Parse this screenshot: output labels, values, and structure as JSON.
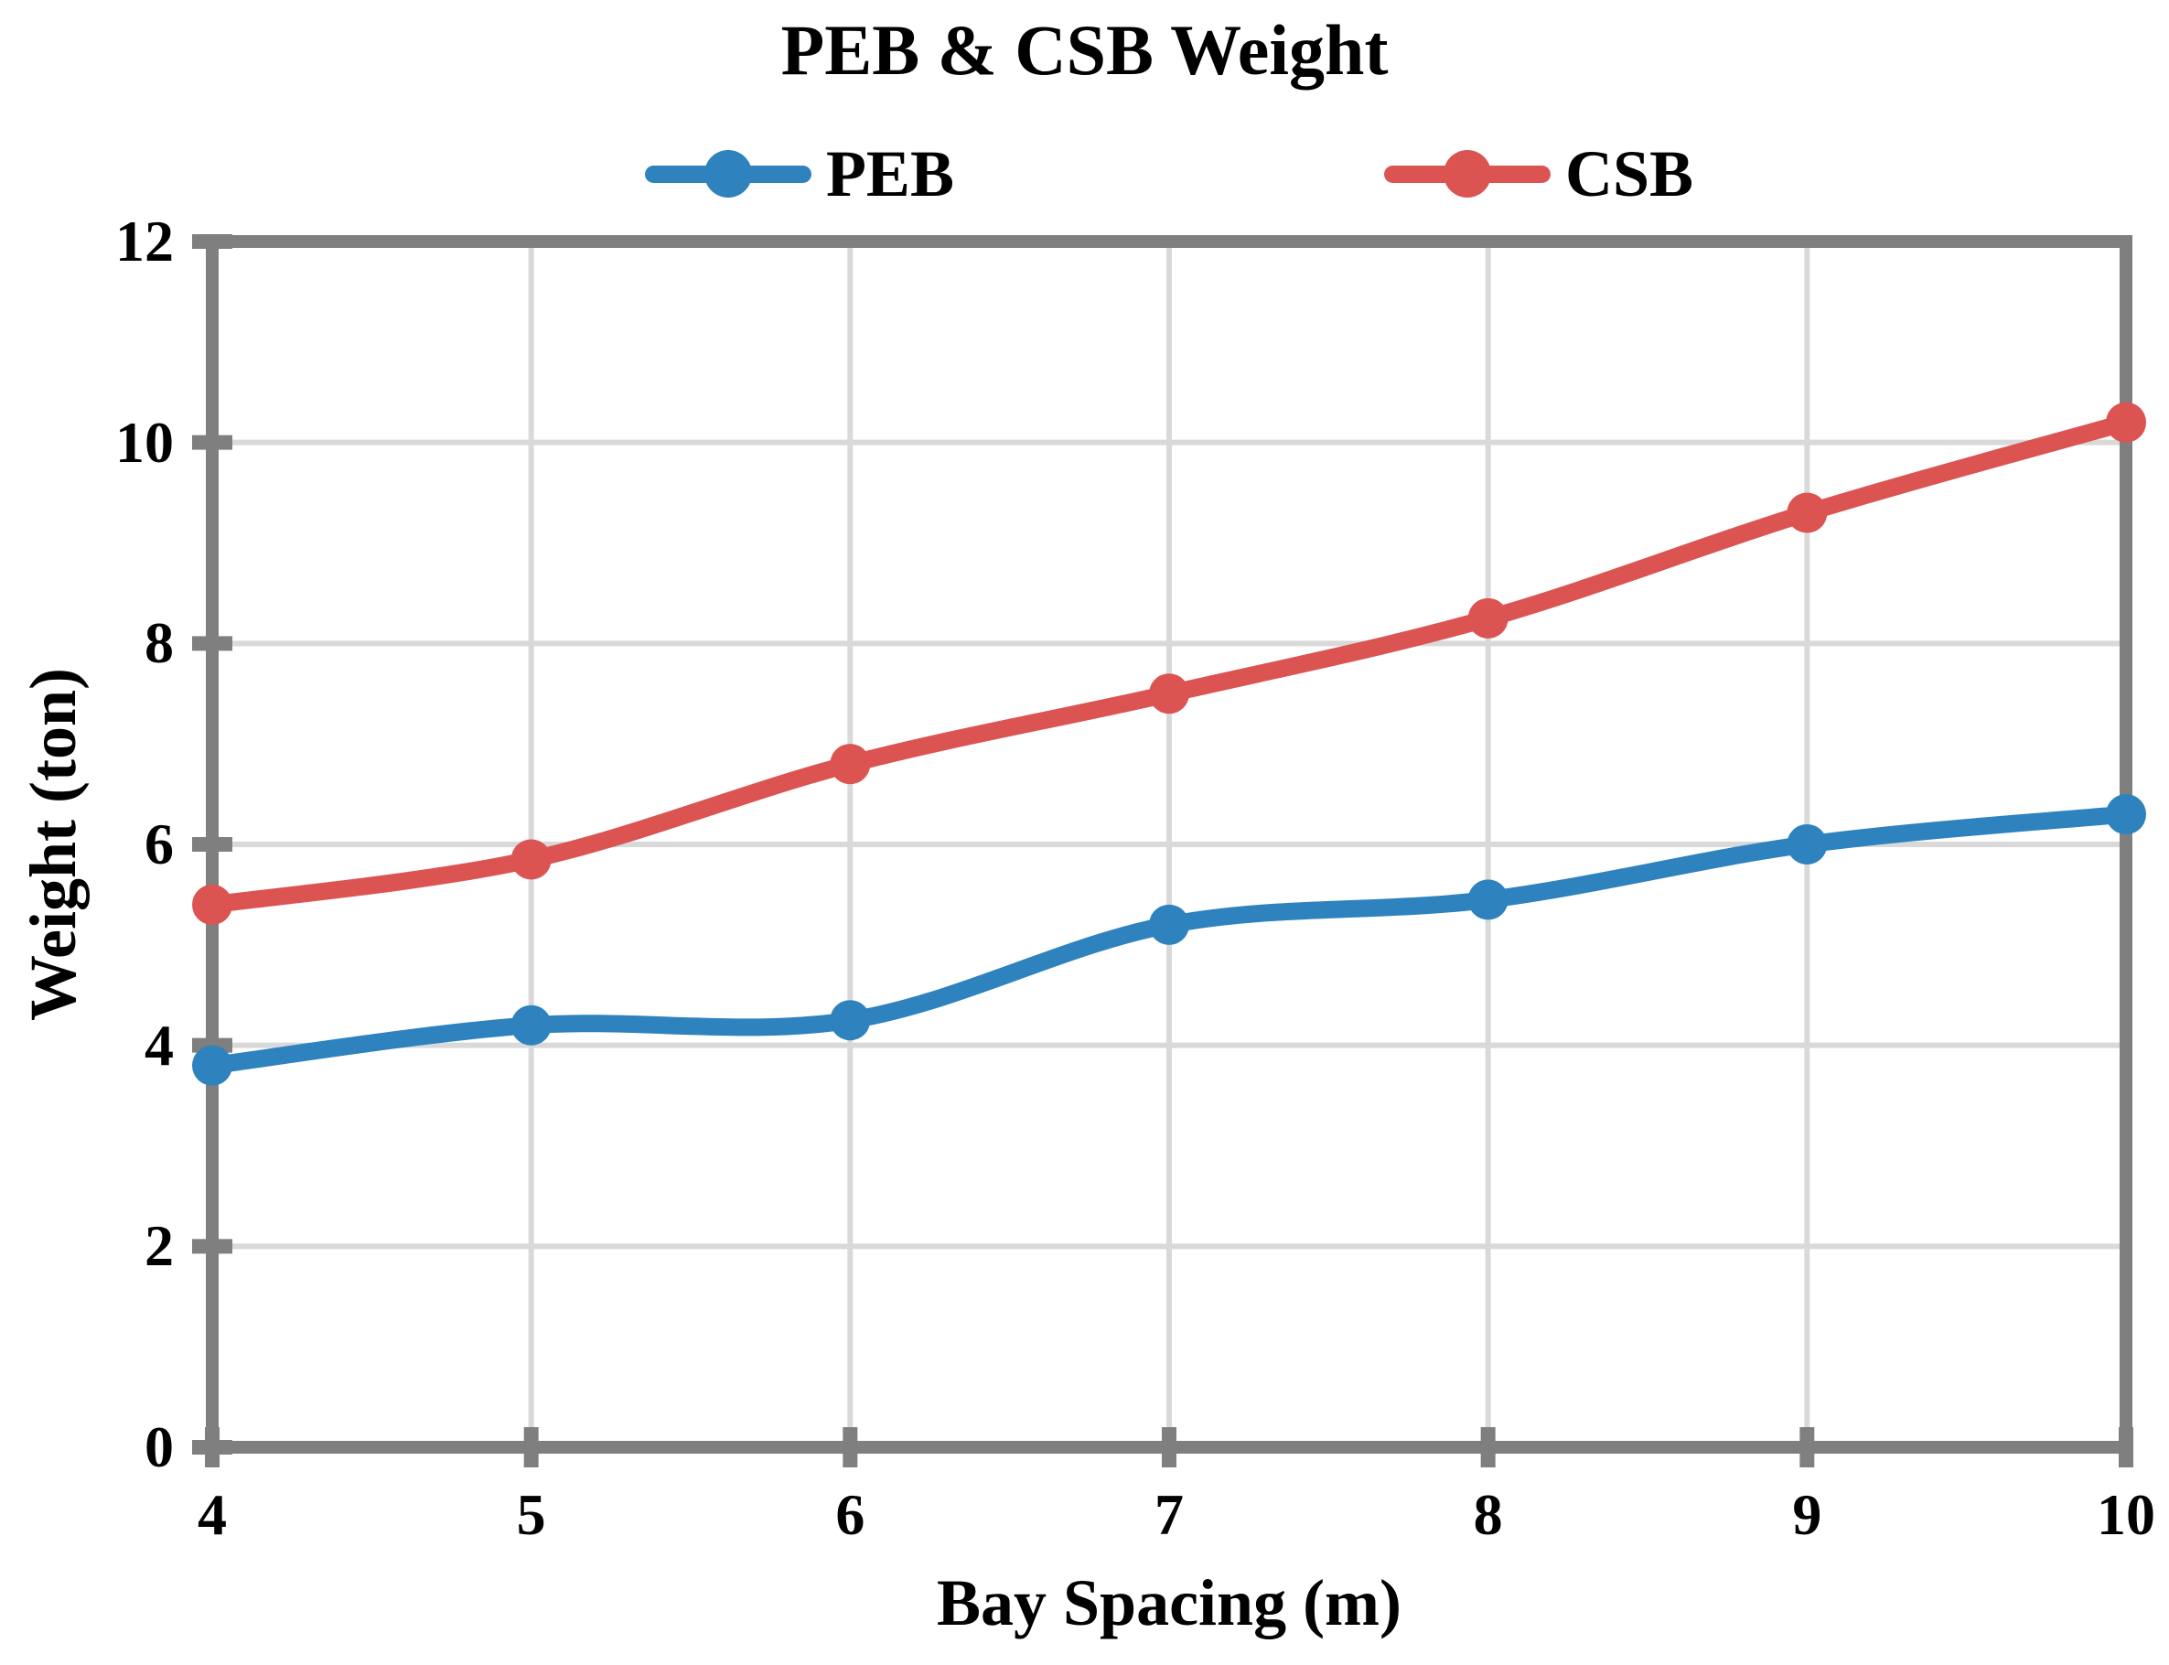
{
  "chart_data": {
    "type": "line",
    "title": "PEB & CSB Weight",
    "xlabel": "Bay Spacing (m)",
    "ylabel": "Weight (ton)",
    "x": [
      4,
      5,
      6,
      7,
      8,
      9,
      10
    ],
    "series": [
      {
        "name": "PEB",
        "color": "#2E82BE",
        "values": [
          3.8,
          4.2,
          4.25,
          5.2,
          5.45,
          6.0,
          6.3
        ]
      },
      {
        "name": "CSB",
        "color": "#DB5452",
        "values": [
          5.4,
          5.85,
          6.8,
          7.5,
          8.25,
          9.3,
          10.2
        ]
      }
    ],
    "xlim": [
      4,
      10
    ],
    "ylim": [
      0,
      12
    ],
    "x_ticks": [
      4,
      5,
      6,
      7,
      8,
      9,
      10
    ],
    "y_ticks": [
      0,
      2,
      4,
      6,
      8,
      10,
      12
    ],
    "grid": true,
    "legend_position": "top-center",
    "line_style": "smooth",
    "marker": "circle"
  },
  "styles": {
    "background": "#FFFFFF",
    "frame_color": "#7F7F7F",
    "grid_color": "#D9D9D9",
    "text_color": "#000000"
  }
}
